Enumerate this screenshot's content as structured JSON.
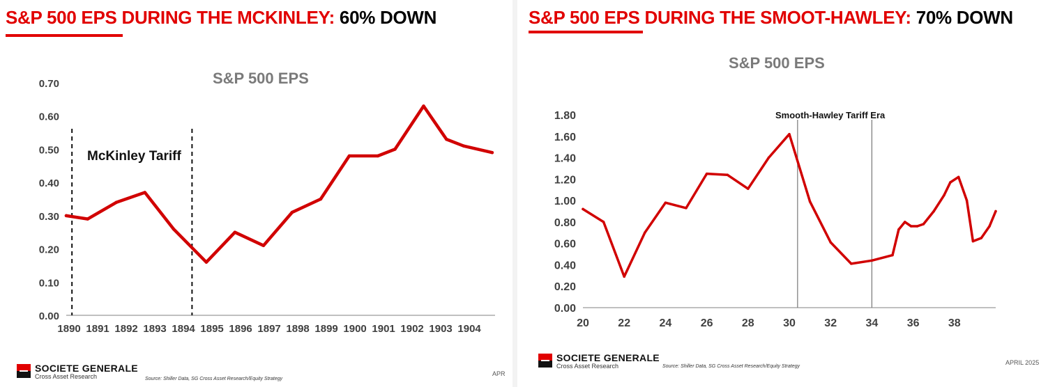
{
  "left": {
    "heading_red": "S&P 500 EPS DURING THE MCKINLEY:",
    "heading_black": "60% DOWN",
    "brand": "SOCIETE GENERALE",
    "brand_sub": "Cross Asset Research",
    "source": "Source: Shiller Data, SG Cross Asset Research/Equity Strategy",
    "date": "APR"
  },
  "right": {
    "heading_red": "S&P 500 EPS DURING THE SMOOT-HAWLEY:",
    "heading_black": "70% DOWN",
    "brand": "SOCIETE GENERALE",
    "brand_sub": "Cross Asset Research",
    "source": "Source: Shiller Data, SG Cross Asset Research/Equity Strategy",
    "date": "APRIL 2025"
  },
  "colors": {
    "accent": "#e10000",
    "line": "#d10000",
    "title_gray": "#7a7a7a"
  },
  "chart_data": [
    {
      "type": "line",
      "title": "S&P 500 EPS",
      "xlabel": "",
      "ylabel": "",
      "categories": [
        "1890",
        "1891",
        "1892",
        "1893",
        "1894",
        "1895",
        "1896",
        "1897",
        "1898",
        "1899",
        "1900",
        "1901",
        "1902",
        "1903",
        "1904"
      ],
      "x_range": [
        1890,
        1905
      ],
      "ylim": [
        0,
        0.7
      ],
      "yticks": [
        "0.00",
        "0.10",
        "0.20",
        "0.30",
        "0.40",
        "0.50",
        "0.60",
        "0.70"
      ],
      "ytick_values": [
        0,
        0.1,
        0.2,
        0.3,
        0.4,
        0.5,
        0.6,
        0.7
      ],
      "series": [
        {
          "name": "S&P 500 EPS",
          "x": [
            1890,
            1890.75,
            1891.75,
            1892.75,
            1893.75,
            1894.9,
            1895.9,
            1896.9,
            1897.9,
            1898.9,
            1899.9,
            1900.9,
            1901.5,
            1902.5,
            1903.3,
            1903.9,
            1904.9
          ],
          "values": [
            0.3,
            0.29,
            0.34,
            0.37,
            0.26,
            0.16,
            0.25,
            0.21,
            0.31,
            0.35,
            0.48,
            0.48,
            0.5,
            0.63,
            0.53,
            0.51,
            0.49
          ]
        }
      ],
      "markers": {
        "label": "McKinley Tariff",
        "x": [
          1890.2,
          1894.4
        ]
      }
    },
    {
      "type": "line",
      "title": "S&P 500 EPS",
      "xlabel": "",
      "ylabel": "",
      "categories": [
        "20",
        "22",
        "24",
        "26",
        "28",
        "30",
        "32",
        "34",
        "36",
        "38"
      ],
      "x_range": [
        20,
        40
      ],
      "ylim": [
        0,
        1.8
      ],
      "yticks": [
        "0.00",
        "0.20",
        "0.40",
        "0.60",
        "0.80",
        "1.00",
        "1.20",
        "1.40",
        "1.60",
        "1.80"
      ],
      "ytick_values": [
        0,
        0.2,
        0.4,
        0.6,
        0.8,
        1.0,
        1.2,
        1.4,
        1.6,
        1.8
      ],
      "series": [
        {
          "name": "S&P 500 EPS",
          "x": [
            20,
            21,
            22,
            23,
            24,
            25,
            26,
            27,
            28,
            29,
            30,
            31,
            32,
            33,
            34,
            35,
            35.3,
            35.6,
            35.9,
            36.2,
            36.5,
            37,
            37.5,
            37.8,
            38.2,
            38.6,
            38.9,
            39.3,
            39.7,
            40
          ],
          "values": [
            0.92,
            0.8,
            0.29,
            0.7,
            0.98,
            0.93,
            1.25,
            1.24,
            1.11,
            1.4,
            1.62,
            0.99,
            0.61,
            0.41,
            0.44,
            0.49,
            0.73,
            0.8,
            0.76,
            0.76,
            0.78,
            0.9,
            1.05,
            1.17,
            1.22,
            1.0,
            0.62,
            0.65,
            0.76,
            0.9
          ]
        }
      ],
      "markers": {
        "label": "Smooth-Hawley Tariff Era",
        "x": [
          30.4,
          34
        ]
      }
    }
  ]
}
